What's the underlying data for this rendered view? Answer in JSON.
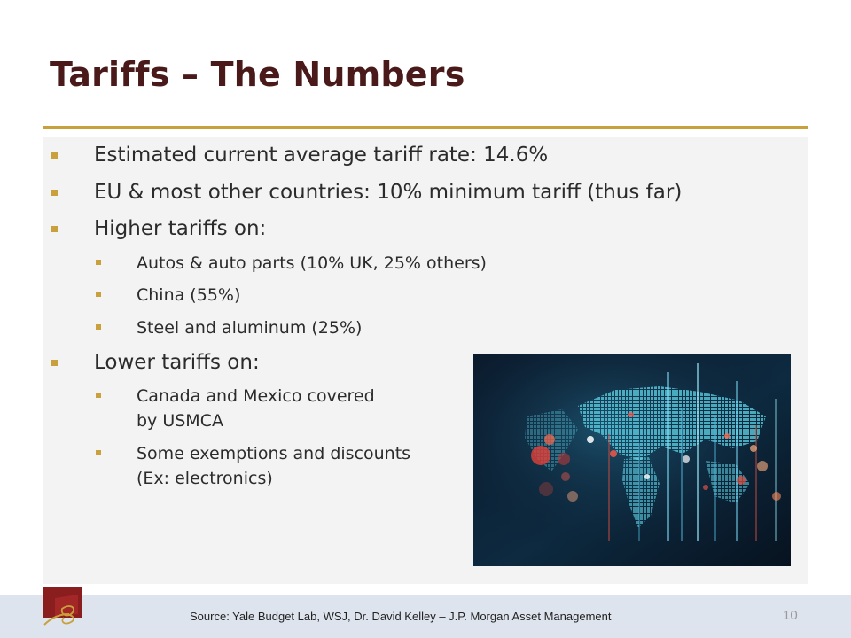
{
  "slide": {
    "title": "Tariffs – The Numbers",
    "bullets": [
      "Estimated current average tariff rate: 14.6%",
      "EU & most other countries: 10% minimum tariff (thus far)",
      "Higher tariffs on:",
      "Lower tariffs on:"
    ],
    "higher_sub": [
      "Autos & auto parts (10% UK, 25% others)",
      "China (55%)",
      "Steel and aluminum (25%)"
    ],
    "lower_sub": [
      [
        "Canada and Mexico covered",
        "by USMCA"
      ],
      [
        "Some exemptions and discounts",
        "(Ex: electronics)"
      ]
    ],
    "image": "world-map-data-visualization",
    "source": "Source: Yale Budget Lab, WSJ, Dr. David Kelley – J.P. Morgan Asset Management",
    "page_number": "10"
  },
  "colors": {
    "title": "#4a1a1a",
    "accent": "#c9a13c",
    "content_bg": "#f3f3f3",
    "footer_bg": "#dee4ee"
  }
}
